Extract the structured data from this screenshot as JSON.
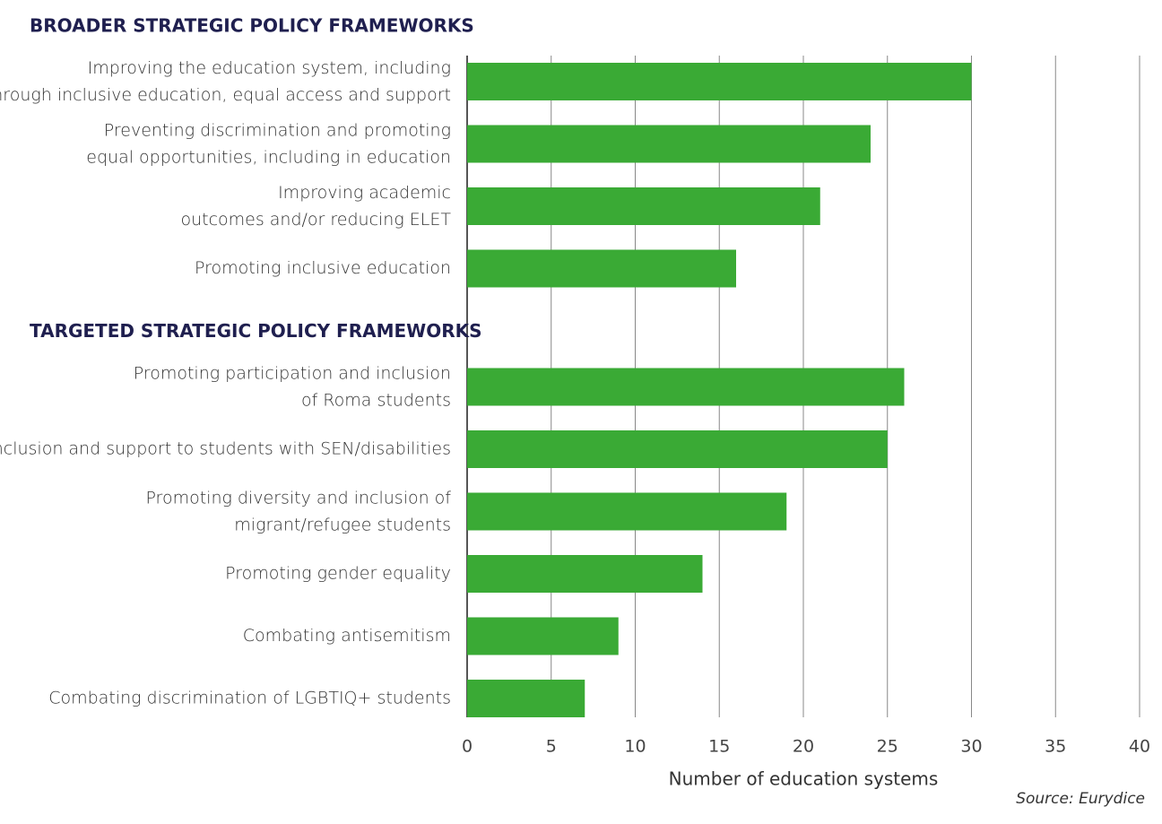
{
  "chart_data": {
    "type": "bar",
    "orientation": "horizontal",
    "color": "#3aaa35",
    "groups": [
      {
        "name": "BROADER STRATEGIC POLICY FRAMEWORKS",
        "categories": [
          "Improving the education system, including\nthrough inclusive education, equal access and support",
          "Preventing discrimination and promoting\nequal opportunities, including in education",
          "Improving academic\noutcomes and/or reducing ELET",
          "Promoting inclusive education"
        ],
        "values": [
          30,
          24,
          21,
          16
        ]
      },
      {
        "name": "TARGETED STRATEGIC POLICY FRAMEWORKS",
        "categories": [
          "Promoting participation and inclusion\nof Roma students",
          "Inclusion and support to students with SEN/disabilities",
          "Promoting diversity and inclusion of\nmigrant/refugee students",
          "Promoting gender equality",
          "Combating antisemitism",
          "Combating discrimination of LGBTIQ+ students"
        ],
        "values": [
          26,
          25,
          19,
          14,
          9,
          7
        ]
      }
    ],
    "xlim": [
      0,
      40
    ],
    "xticks": [
      0,
      5,
      10,
      15,
      20,
      25,
      30,
      35,
      40
    ],
    "grid": true,
    "xlabel": "Number of education systems",
    "source": "Source: Eurydice"
  }
}
